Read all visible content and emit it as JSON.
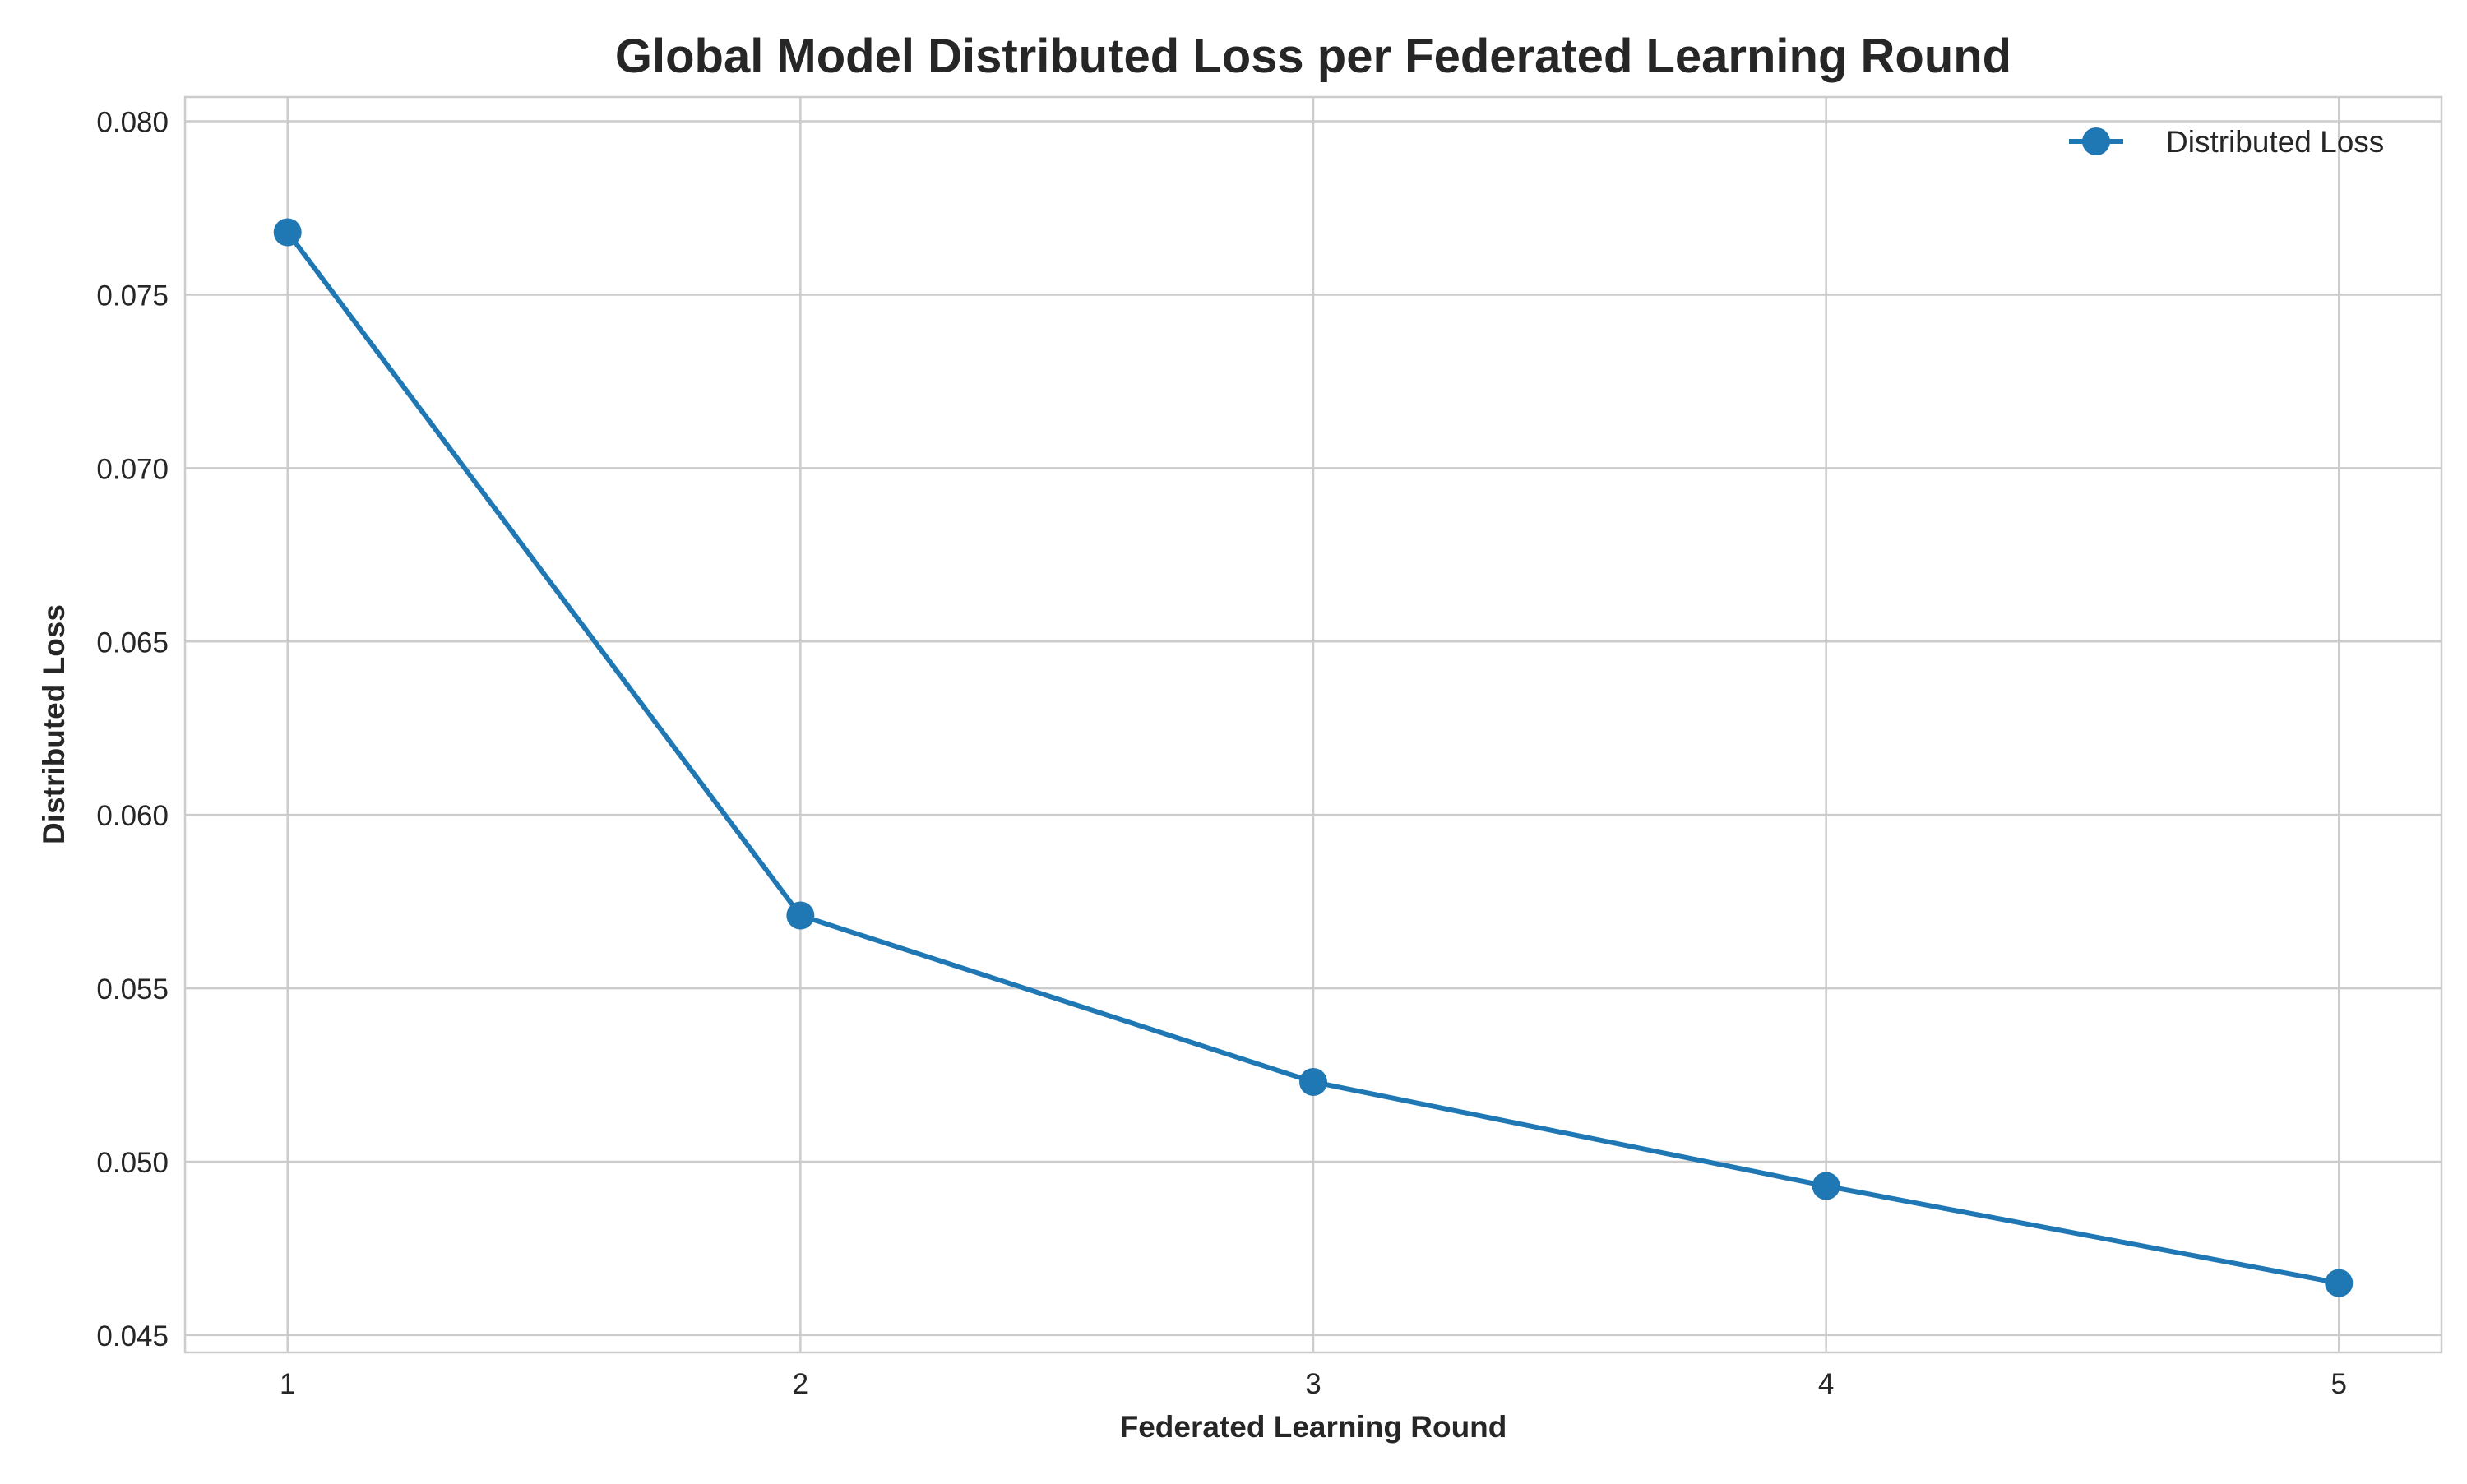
{
  "chart_data": {
    "type": "line",
    "title": "Global Model Distributed Loss per Federated Learning Round",
    "xlabel": "Federated Learning Round",
    "ylabel": "Distributed Loss",
    "x": [
      1,
      2,
      3,
      4,
      5
    ],
    "x_ticks": [
      "1",
      "2",
      "3",
      "4",
      "5"
    ],
    "y_ticks": [
      "0.045",
      "0.050",
      "0.055",
      "0.060",
      "0.065",
      "0.070",
      "0.075",
      "0.080"
    ],
    "xlim": [
      0.8,
      5.2
    ],
    "ylim": [
      0.0445,
      0.0807
    ],
    "grid": true,
    "legend_position": "top-right",
    "series": [
      {
        "name": "Distributed Loss",
        "color": "#1f77b4",
        "marker": "circle",
        "values": [
          0.0768,
          0.0571,
          0.0523,
          0.0493,
          0.0465
        ]
      }
    ]
  }
}
